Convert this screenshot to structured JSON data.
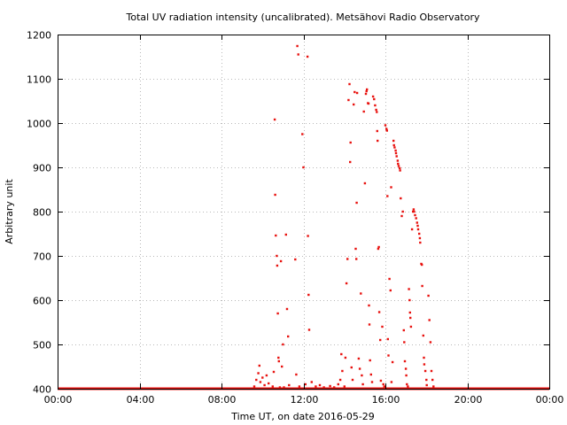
{
  "chart_data": {
    "type": "scatter",
    "title": "Total UV radiation intensity (uncalibrated). Metsähovi Radio Observatory",
    "xlabel": "Time UT, on date 2016-05-29",
    "ylabel": "Arbitrary unit",
    "xlim": [
      0,
      24
    ],
    "ylim": [
      400,
      1200
    ],
    "x_ticks": [
      0,
      4,
      8,
      12,
      16,
      20,
      24
    ],
    "x_tick_labels": [
      "00:00",
      "04:00",
      "08:00",
      "12:00",
      "16:00",
      "20:00",
      "00:00"
    ],
    "y_ticks": [
      400,
      500,
      600,
      700,
      800,
      900,
      1000,
      1100,
      1200
    ],
    "y_tick_labels": [
      "400",
      "500",
      "600",
      "700",
      "800",
      "900",
      "1000",
      "1100",
      "1200"
    ],
    "grid": true,
    "color": "#e8120f",
    "baseline": {
      "value": 400,
      "x_start": 0,
      "x_end": 24
    },
    "points": [
      [
        9.6,
        405
      ],
      [
        9.7,
        420
      ],
      [
        9.8,
        435
      ],
      [
        9.85,
        452
      ],
      [
        9.9,
        415
      ],
      [
        10.0,
        425
      ],
      [
        10.1,
        408
      ],
      [
        10.2,
        430
      ],
      [
        10.3,
        412
      ],
      [
        10.5,
        405
      ],
      [
        10.55,
        438
      ],
      [
        10.6,
        1008
      ],
      [
        10.62,
        838
      ],
      [
        10.65,
        746
      ],
      [
        10.7,
        700
      ],
      [
        10.72,
        678
      ],
      [
        10.75,
        570
      ],
      [
        10.78,
        470
      ],
      [
        10.8,
        462
      ],
      [
        10.85,
        403
      ],
      [
        10.9,
        688
      ],
      [
        10.95,
        450
      ],
      [
        11.0,
        500
      ],
      [
        11.05,
        403
      ],
      [
        11.15,
        748
      ],
      [
        11.2,
        580
      ],
      [
        11.25,
        518
      ],
      [
        11.3,
        408
      ],
      [
        11.6,
        692
      ],
      [
        11.65,
        432
      ],
      [
        11.7,
        1174
      ],
      [
        11.75,
        1155
      ],
      [
        11.8,
        405
      ],
      [
        11.95,
        975
      ],
      [
        12.0,
        900
      ],
      [
        12.1,
        410
      ],
      [
        12.2,
        1150
      ],
      [
        12.22,
        745
      ],
      [
        12.25,
        612
      ],
      [
        12.28,
        533
      ],
      [
        12.4,
        415
      ],
      [
        12.6,
        405
      ],
      [
        12.8,
        408
      ],
      [
        13.0,
        403
      ],
      [
        13.3,
        406
      ],
      [
        13.5,
        403
      ],
      [
        13.7,
        410
      ],
      [
        13.8,
        420
      ],
      [
        13.85,
        478
      ],
      [
        13.9,
        440
      ],
      [
        14.0,
        405
      ],
      [
        14.05,
        470
      ],
      [
        14.1,
        638
      ],
      [
        14.15,
        693
      ],
      [
        14.2,
        1052
      ],
      [
        14.25,
        1088
      ],
      [
        14.28,
        912
      ],
      [
        14.3,
        956
      ],
      [
        14.35,
        448
      ],
      [
        14.4,
        420
      ],
      [
        14.45,
        1042
      ],
      [
        14.5,
        1070
      ],
      [
        14.55,
        716
      ],
      [
        14.58,
        693
      ],
      [
        14.6,
        820
      ],
      [
        14.62,
        1068
      ],
      [
        14.7,
        468
      ],
      [
        14.75,
        445
      ],
      [
        14.8,
        615
      ],
      [
        14.85,
        430
      ],
      [
        14.9,
        410
      ],
      [
        14.95,
        1026
      ],
      [
        15.0,
        864
      ],
      [
        15.05,
        1066
      ],
      [
        15.08,
        1072
      ],
      [
        15.1,
        1076
      ],
      [
        15.15,
        1045
      ],
      [
        15.18,
        1044
      ],
      [
        15.2,
        588
      ],
      [
        15.22,
        545
      ],
      [
        15.25,
        464
      ],
      [
        15.3,
        432
      ],
      [
        15.35,
        415
      ],
      [
        15.4,
        1060
      ],
      [
        15.45,
        1054
      ],
      [
        15.5,
        1040
      ],
      [
        15.55,
        1030
      ],
      [
        15.58,
        1025
      ],
      [
        15.6,
        982
      ],
      [
        15.62,
        960
      ],
      [
        15.65,
        716
      ],
      [
        15.68,
        720
      ],
      [
        15.7,
        573
      ],
      [
        15.75,
        510
      ],
      [
        15.78,
        418
      ],
      [
        15.85,
        540
      ],
      [
        15.9,
        410
      ],
      [
        15.95,
        405
      ],
      [
        16.0,
        995
      ],
      [
        16.05,
        987
      ],
      [
        16.08,
        983
      ],
      [
        16.1,
        835
      ],
      [
        16.12,
        512
      ],
      [
        16.15,
        475
      ],
      [
        16.2,
        648
      ],
      [
        16.25,
        622
      ],
      [
        16.28,
        855
      ],
      [
        16.3,
        415
      ],
      [
        16.35,
        460
      ],
      [
        16.4,
        960
      ],
      [
        16.42,
        950
      ],
      [
        16.45,
        945
      ],
      [
        16.5,
        938
      ],
      [
        16.52,
        932
      ],
      [
        16.55,
        925
      ],
      [
        16.6,
        915
      ],
      [
        16.62,
        908
      ],
      [
        16.65,
        903
      ],
      [
        16.7,
        898
      ],
      [
        16.72,
        893
      ],
      [
        16.75,
        830
      ],
      [
        16.8,
        790
      ],
      [
        16.85,
        800
      ],
      [
        16.9,
        532
      ],
      [
        16.92,
        505
      ],
      [
        16.95,
        462
      ],
      [
        17.0,
        445
      ],
      [
        17.02,
        430
      ],
      [
        17.05,
        410
      ],
      [
        17.1,
        405
      ],
      [
        17.15,
        625
      ],
      [
        17.18,
        600
      ],
      [
        17.2,
        572
      ],
      [
        17.22,
        560
      ],
      [
        17.25,
        540
      ],
      [
        17.3,
        760
      ],
      [
        17.35,
        800
      ],
      [
        17.38,
        805
      ],
      [
        17.4,
        800
      ],
      [
        17.45,
        792
      ],
      [
        17.5,
        785
      ],
      [
        17.55,
        775
      ],
      [
        17.58,
        768
      ],
      [
        17.6,
        760
      ],
      [
        17.65,
        750
      ],
      [
        17.68,
        740
      ],
      [
        17.7,
        730
      ],
      [
        17.75,
        682
      ],
      [
        17.78,
        680
      ],
      [
        17.8,
        632
      ],
      [
        17.85,
        520
      ],
      [
        17.88,
        470
      ],
      [
        17.9,
        455
      ],
      [
        17.95,
        440
      ],
      [
        18.0,
        420
      ],
      [
        18.02,
        408
      ],
      [
        18.1,
        610
      ],
      [
        18.15,
        555
      ],
      [
        18.2,
        505
      ],
      [
        18.25,
        440
      ],
      [
        18.3,
        420
      ],
      [
        18.35,
        405
      ]
    ]
  }
}
